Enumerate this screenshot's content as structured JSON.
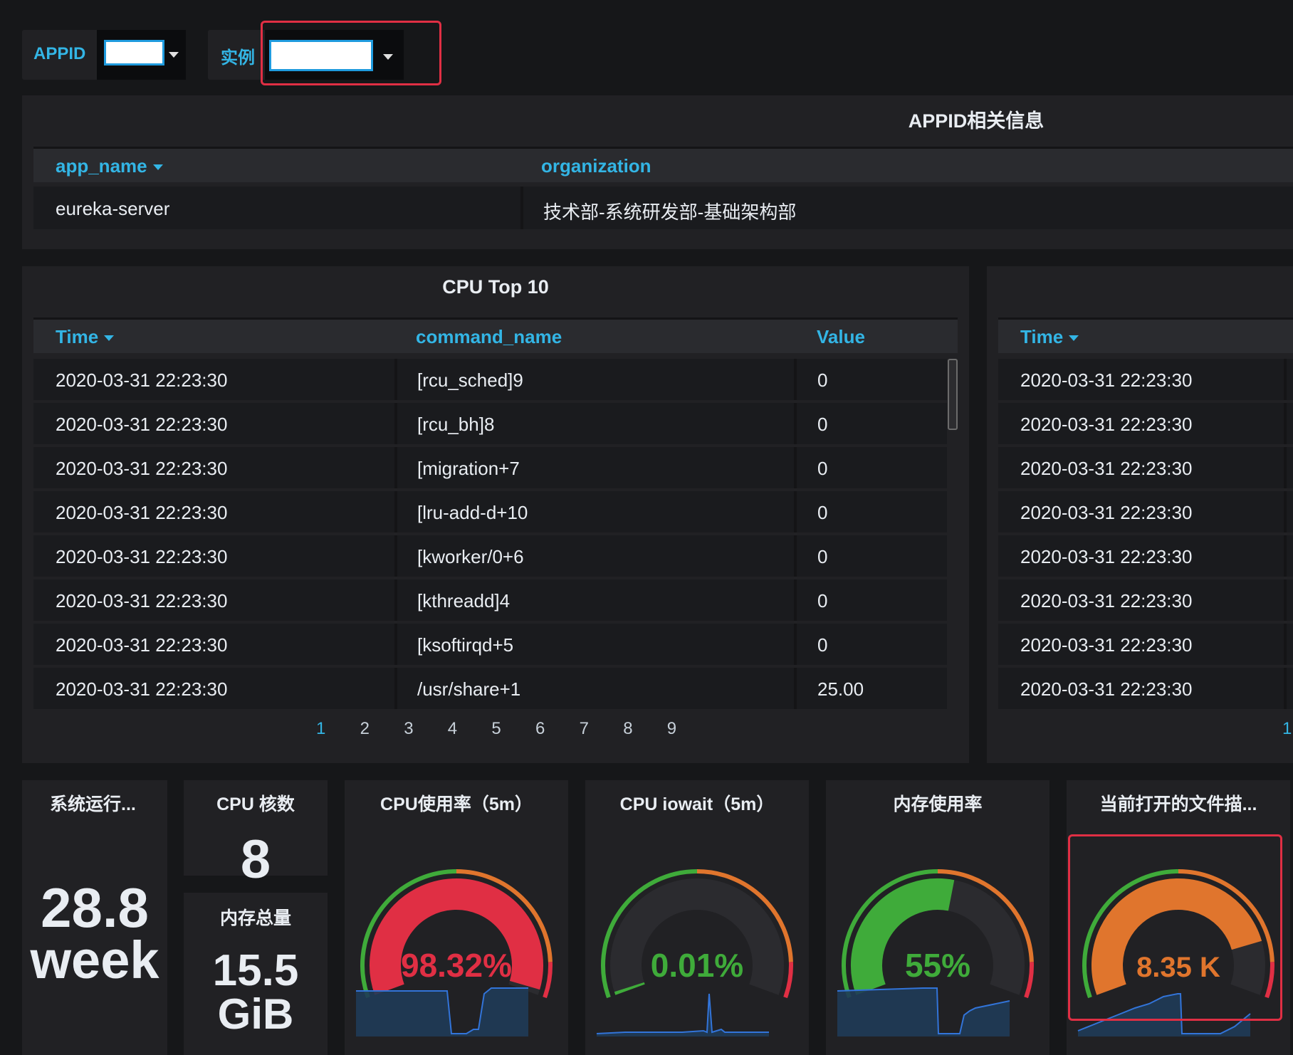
{
  "variables": {
    "appid_label": "APPID",
    "instance_label": "实例"
  },
  "appid_panel": {
    "title": "APPID相关信息",
    "columns": [
      "app_name",
      "organization"
    ],
    "rows": [
      [
        "eureka-server",
        "技术部-系统研发部-基础架构部"
      ]
    ]
  },
  "cpu_panel": {
    "title": "CPU Top 10",
    "columns": [
      "Time",
      "command_name",
      "Value"
    ],
    "rows": [
      [
        "2020-03-31 22:23:30",
        "[rcu_sched]9",
        "0"
      ],
      [
        "2020-03-31 22:23:30",
        "[rcu_bh]8",
        "0"
      ],
      [
        "2020-03-31 22:23:30",
        "[migration+7",
        "0"
      ],
      [
        "2020-03-31 22:23:30",
        "[lru-add-d+10",
        "0"
      ],
      [
        "2020-03-31 22:23:30",
        "[kworker/0+6",
        "0"
      ],
      [
        "2020-03-31 22:23:30",
        "[kthreadd]4",
        "0"
      ],
      [
        "2020-03-31 22:23:30",
        "[ksoftirqd+5",
        "0"
      ],
      [
        "2020-03-31 22:23:30",
        "/usr/share+1",
        "25.00"
      ]
    ],
    "pages": [
      "1",
      "2",
      "3",
      "4",
      "5",
      "6",
      "7",
      "8",
      "9"
    ],
    "active_page": "1"
  },
  "right_panel": {
    "columns": [
      "Time"
    ],
    "rows": [
      "2020-03-31 22:23:30",
      "2020-03-31 22:23:30",
      "2020-03-31 22:23:30",
      "2020-03-31 22:23:30",
      "2020-03-31 22:23:30",
      "2020-03-31 22:23:30",
      "2020-03-31 22:23:30",
      "2020-03-31 22:23:30"
    ],
    "active_page": "1"
  },
  "stats": {
    "uptime": {
      "title": "系统运行...",
      "value": "28.8",
      "unit": "week"
    },
    "cpu_cores": {
      "title": "CPU 核数",
      "value": "8"
    },
    "mem_total": {
      "title": "内存总量",
      "value": "15.5",
      "unit": "GiB"
    }
  },
  "gauges": [
    {
      "title": "CPU使用率（5m）",
      "value_text": "98.32%",
      "fraction": 0.983,
      "color": "#e02f44",
      "sparkline": "0,36 70,36 120,36 128,36 134,96 155,96 165,90 172,90 180,40 190,32 220,32 242,32"
    },
    {
      "title": "CPU iowait（5m）",
      "value_text": "0.01%",
      "fraction": 0.01,
      "color": "#3fab3a",
      "sparkline": "0,96 40,94 80,94 120,94 150,92 155,94 158,40 162,94 175,90 180,94 210,94 242,94"
    },
    {
      "title": "内存使用率",
      "value_text": "55%",
      "fraction": 0.55,
      "color": "#3fab3a",
      "sparkline": "0,36 60,34 120,32 140,32 142,96 172,96 178,70 186,64 194,60 242,50"
    },
    {
      "title": "当前打开的文件描...",
      "value_text": "8.35 K",
      "fraction": 0.835,
      "color": "#e0752d",
      "sparkline": "0,92 20,84 40,76 60,68 80,60 100,54 120,44 140,40 144,40 146,96 200,96 220,86 242,68"
    }
  ],
  "colors": {
    "accent": "#33b5e5",
    "highlight_box": "#e02f44"
  }
}
